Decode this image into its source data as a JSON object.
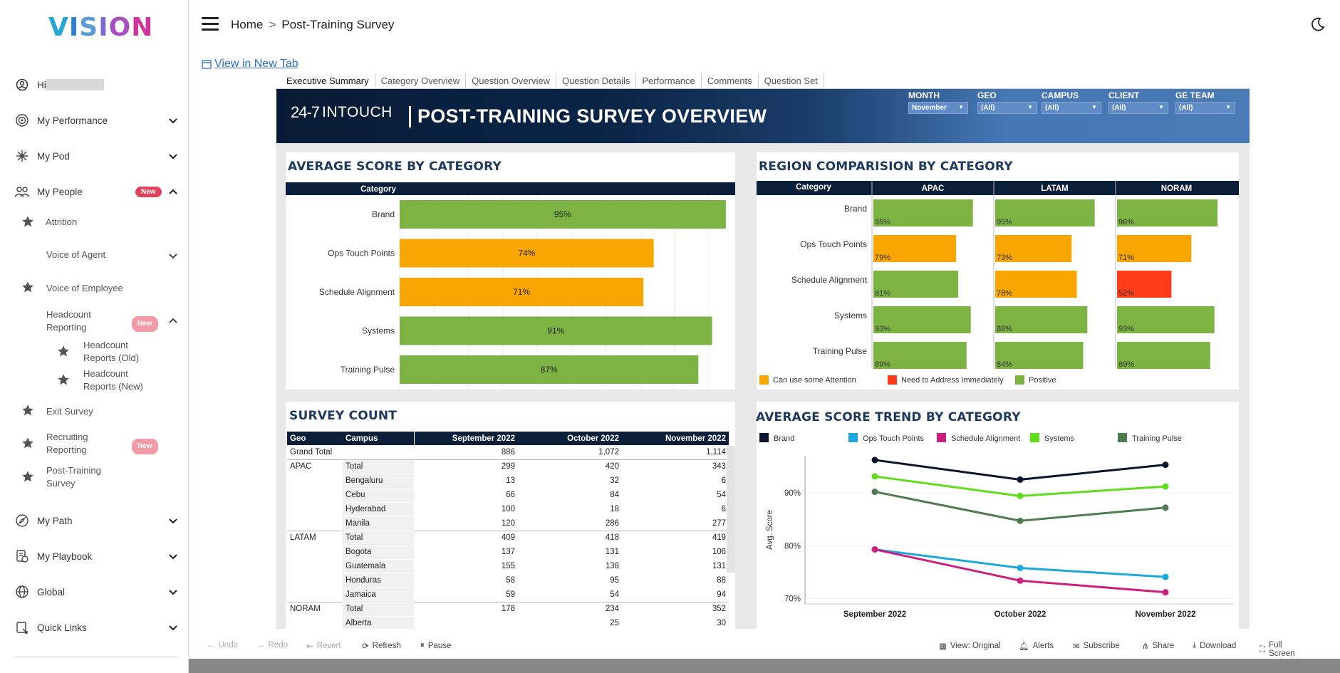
{
  "app": {
    "logo_letters": [
      "V",
      "I",
      "S",
      "I",
      "O",
      "N"
    ],
    "logo_colors": [
      "#27a6d6",
      "#2c7fd1",
      "#5b9bd5",
      "#7a6ad3",
      "#a64fc1",
      "#d1349c"
    ]
  },
  "sidebar": {
    "greeting": "Hi",
    "items": [
      {
        "label": "My Performance",
        "icon": "target-icon"
      },
      {
        "label": "My Pod",
        "icon": "network-icon"
      },
      {
        "label": "My People",
        "icon": "people-icon",
        "badge": "New"
      },
      {
        "label": "My Path",
        "icon": "compass-icon"
      },
      {
        "label": "My Playbook",
        "icon": "playbook-icon"
      },
      {
        "label": "Global",
        "icon": "globe-icon"
      },
      {
        "label": "Quick Links",
        "icon": "links-icon"
      }
    ],
    "people_sub": {
      "attrition": "Attrition",
      "voice_of_agent": "Voice of Agent",
      "voice_of_employee": "Voice of Employee",
      "headcount_reporting": "Headcount Reporting",
      "headcount_badge": "New",
      "headcount_old": "Headcount Reports (Old)",
      "headcount_new": "Headcount Reports (New)",
      "exit_survey": "Exit Survey",
      "recruiting_reporting": "Recruiting Reporting",
      "recruiting_badge": "New",
      "post_training_survey": "Post-Training Survey"
    }
  },
  "header": {
    "breadcrumb_home": "Home",
    "breadcrumb_sep": ">",
    "breadcrumb_current": "Post-Training Survey",
    "view_new_tab": "View in New Tab"
  },
  "tabs": [
    "Executive Summary",
    "Category Overview",
    "Question Overview",
    "Question Details",
    "Performance",
    "Comments",
    "Question Set"
  ],
  "banner": {
    "logo_num": "24-7",
    "logo_word": "INTOUCH",
    "title": "POST-TRAINING SURVEY OVERVIEW",
    "filters": [
      {
        "label": "MONTH",
        "value": "November"
      },
      {
        "label": "GEO",
        "value": "(All)"
      },
      {
        "label": "CAMPUS",
        "value": "(All)"
      },
      {
        "label": "CLIENT",
        "value": "(All)"
      },
      {
        "label": "GE TEAM",
        "value": "(All)"
      }
    ]
  },
  "colors": {
    "positive": "#7cb342",
    "attention": "#f9a602",
    "address": "#ff3b1a",
    "navy": "#0b1f3a"
  },
  "avg_score": {
    "title": "AVERAGE SCORE BY CATEGORY",
    "header": "Category",
    "chart_data": {
      "type": "bar",
      "categories": [
        "Brand",
        "Ops Touch Points",
        "Schedule Alignment",
        "Systems",
        "Training Pulse"
      ],
      "values": [
        95,
        74,
        71,
        91,
        87
      ],
      "labels": [
        "95%",
        "74%",
        "71%",
        "91%",
        "87%"
      ],
      "status": [
        "positive",
        "attention",
        "attention",
        "positive",
        "positive"
      ]
    }
  },
  "region": {
    "title": "REGION COMPARISION BY CATEGORY",
    "header": "Category",
    "legend": [
      {
        "label": "Can use some Attention",
        "key": "attention"
      },
      {
        "label": "Need to Address Immediately",
        "key": "address"
      },
      {
        "label": "Positive",
        "key": "positive"
      }
    ],
    "chart_data": {
      "type": "bar",
      "categories": [
        "Brand",
        "Ops Touch Points",
        "Schedule Alignment",
        "Systems",
        "Training Pulse"
      ],
      "series": [
        {
          "name": "APAC",
          "values": [
            95,
            79,
            81,
            93,
            89
          ],
          "labels": [
            "95%",
            "79%",
            "81%",
            "93%",
            "89%"
          ],
          "status": [
            "positive",
            "attention",
            "positive",
            "positive",
            "positive"
          ]
        },
        {
          "name": "LATAM",
          "values": [
            95,
            73,
            78,
            88,
            84
          ],
          "labels": [
            "95%",
            "73%",
            "78%",
            "88%",
            "84%"
          ],
          "status": [
            "positive",
            "attention",
            "attention",
            "positive",
            "positive"
          ]
        },
        {
          "name": "NORAM",
          "values": [
            96,
            71,
            52,
            93,
            89
          ],
          "labels": [
            "96%",
            "71%",
            "52%",
            "93%",
            "89%"
          ],
          "status": [
            "positive",
            "attention",
            "address",
            "positive",
            "positive"
          ]
        }
      ]
    }
  },
  "survey_count": {
    "title": "SURVEY COUNT",
    "headers": [
      "Geo",
      "Campus",
      "September 2022",
      "October 2022",
      "November 2022"
    ],
    "grand_total": {
      "label": "Grand Total",
      "values": [
        "886",
        "1,072",
        "1,114"
      ]
    },
    "groups": [
      {
        "geo": "APAC",
        "rows": [
          {
            "campus": "Total",
            "values": [
              "299",
              "420",
              "343"
            ]
          },
          {
            "campus": "Bengaluru",
            "values": [
              "13",
              "32",
              "6"
            ]
          },
          {
            "campus": "Cebu",
            "values": [
              "66",
              "84",
              "54"
            ]
          },
          {
            "campus": "Hyderabad",
            "values": [
              "100",
              "18",
              "6"
            ]
          },
          {
            "campus": "Manila",
            "values": [
              "120",
              "286",
              "277"
            ]
          }
        ]
      },
      {
        "geo": "LATAM",
        "rows": [
          {
            "campus": "Total",
            "values": [
              "409",
              "418",
              "419"
            ]
          },
          {
            "campus": "Bogota",
            "values": [
              "137",
              "131",
              "106"
            ]
          },
          {
            "campus": "Guatemala",
            "values": [
              "155",
              "138",
              "131"
            ]
          },
          {
            "campus": "Honduras",
            "values": [
              "58",
              "95",
              "88"
            ]
          },
          {
            "campus": "Jamaica",
            "values": [
              "59",
              "54",
              "94"
            ]
          }
        ]
      },
      {
        "geo": "NORAM",
        "rows": [
          {
            "campus": "Total",
            "values": [
              "178",
              "234",
              "352"
            ]
          },
          {
            "campus": "Alberta",
            "values": [
              "",
              "25",
              "30"
            ]
          }
        ]
      }
    ]
  },
  "trend": {
    "title": "AVERAGE SCORE TREND BY CATEGORY",
    "chart_data": {
      "type": "line",
      "x": [
        "September 2022",
        "October 2022",
        "November 2022"
      ],
      "ylabel": "Avg. Score",
      "yticks": [
        "70%",
        "80%",
        "90%"
      ],
      "ylim": [
        69,
        97
      ],
      "series": [
        {
          "name": "Brand",
          "color": "#0b1530",
          "values": [
            96.2,
            92.5,
            95.3
          ]
        },
        {
          "name": "Ops Touch Points",
          "color": "#1ba8dd",
          "values": [
            79.3,
            75.8,
            74.1
          ]
        },
        {
          "name": "Schedule Alignment",
          "color": "#cc1f80",
          "values": [
            79.3,
            73.4,
            71.2
          ]
        },
        {
          "name": "Systems",
          "color": "#5fdc1c",
          "values": [
            93.1,
            89.4,
            91.2
          ]
        },
        {
          "name": "Training Pulse",
          "color": "#4f7d50",
          "values": [
            90.2,
            84.7,
            87.2
          ]
        }
      ]
    }
  },
  "toolbar": {
    "undo": "Undo",
    "redo": "Redo",
    "revert": "Revert",
    "refresh": "Refresh",
    "pause": "Pause",
    "view": "View: Original",
    "alerts": "Alerts",
    "subscribe": "Subscribe",
    "share": "Share",
    "download": "Download",
    "fullscreen": "Full Screen"
  }
}
